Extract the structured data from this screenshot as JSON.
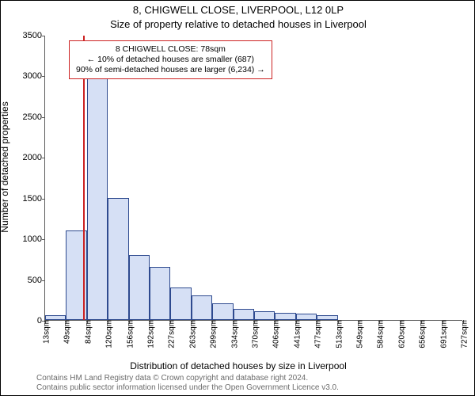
{
  "title_line1": "8, CHIGWELL CLOSE, LIVERPOOL, L12 0LP",
  "title_line2": "Size of property relative to detached houses in Liverpool",
  "y_axis_label": "Number of detached properties",
  "x_axis_label": "Distribution of detached houses by size in Liverpool",
  "credits_line1": "Contains HM Land Registry data © Crown copyright and database right 2024.",
  "credits_line2": "Contains public sector information licensed under the Open Government Licence v3.0.",
  "chart": {
    "type": "histogram",
    "background_color": "#ffffff",
    "axis_color": "#5a5a5a",
    "bar_fill": "#d6e0f5",
    "bar_border": "#2e4a8f",
    "marker_line_color": "#cc2222",
    "callout_border": "#cc2222",
    "tick_font_size": 11,
    "label_font_size": 12,
    "title_font_size": 13,
    "ylim": [
      0,
      3500
    ],
    "ytick_step": 500,
    "yticks": [
      0,
      500,
      1000,
      1500,
      2000,
      2500,
      3000,
      3500
    ],
    "x_categories": [
      "13sqm",
      "49sqm",
      "84sqm",
      "120sqm",
      "156sqm",
      "192sqm",
      "227sqm",
      "263sqm",
      "299sqm",
      "334sqm",
      "370sqm",
      "406sqm",
      "441sqm",
      "477sqm",
      "513sqm",
      "549sqm",
      "584sqm",
      "620sqm",
      "656sqm",
      "691sqm",
      "727sqm"
    ],
    "values": [
      60,
      1100,
      3200,
      1500,
      800,
      650,
      400,
      300,
      200,
      140,
      110,
      90,
      80,
      60,
      0,
      0,
      0,
      0,
      0,
      0
    ],
    "marker_category_index": 2,
    "marker_value_sqm": 78,
    "bar_width_ratio": 1.0
  },
  "callout": {
    "line1": "8 CHIGWELL CLOSE: 78sqm",
    "line2": "← 10% of detached houses are smaller (687)",
    "line3": "90% of semi-detached houses are larger (6,234) →"
  }
}
